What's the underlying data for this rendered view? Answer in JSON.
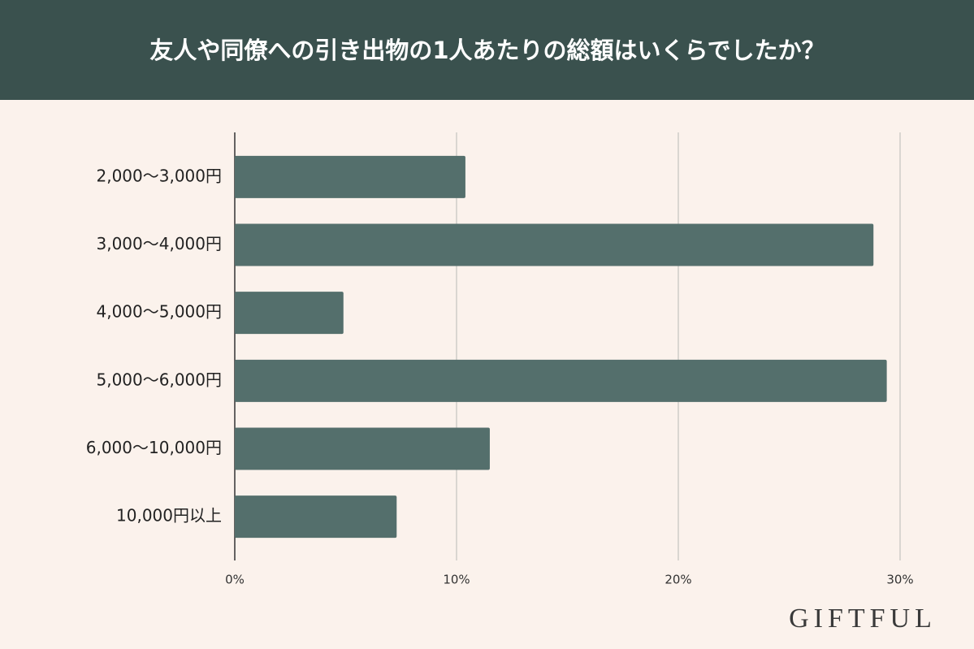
{
  "chart_data": {
    "type": "barh",
    "title": "友人や同僚への引き出物の1人あたりの総額はいくらでしたか？",
    "categories": [
      "2,000〜3,000円",
      "3,000〜4,000円",
      "4,000〜5,000円",
      "5,000〜6,000円",
      "6,000〜10,000円",
      "10,000円以上"
    ],
    "values": [
      10.4,
      28.8,
      4.9,
      29.4,
      11.5,
      7.3
    ],
    "color": "#546f6c",
    "xlim": [
      0,
      30
    ],
    "xticks": [
      {
        "value": 0,
        "label": "0%"
      },
      {
        "value": 10,
        "label": "10%"
      },
      {
        "value": 20,
        "label": "20%"
      },
      {
        "value": 30,
        "label": "30%"
      }
    ],
    "grid": true,
    "brand": "GIFTFUL"
  }
}
